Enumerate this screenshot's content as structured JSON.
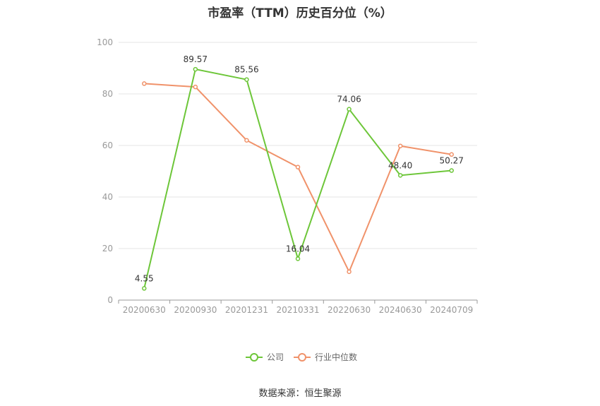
{
  "title": "市盈率（TTM）历史百分位（%）",
  "source": "数据来源：恒生聚源",
  "chart_data": {
    "type": "line",
    "categories": [
      "20200630",
      "20200930",
      "20201231",
      "20210331",
      "20220630",
      "20240630",
      "20240709"
    ],
    "series": [
      {
        "name": "公司",
        "color": "#6dc639",
        "values": [
          4.55,
          89.57,
          85.56,
          16.04,
          74.06,
          48.4,
          50.27
        ],
        "labels": [
          "4.55",
          "89.57",
          "85.56",
          "16.04",
          "74.06",
          "48.40",
          "50.27"
        ]
      },
      {
        "name": "行业中位数",
        "color": "#f0926a",
        "values": [
          84.0,
          82.7,
          62.0,
          51.6,
          11.0,
          59.8,
          56.5
        ]
      }
    ],
    "ylim": [
      0,
      100
    ],
    "yticks": [
      "0",
      "20",
      "40",
      "60",
      "80",
      "100"
    ],
    "grid": true,
    "legend": "bottom-center"
  }
}
